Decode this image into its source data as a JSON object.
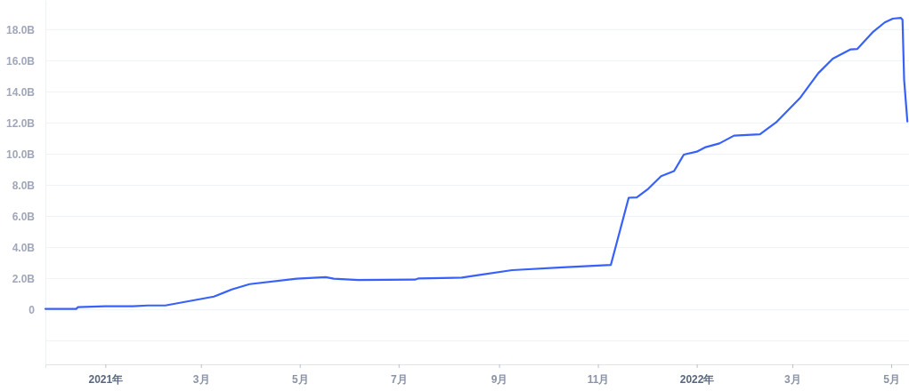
{
  "chart_data": {
    "type": "line",
    "x": [
      "2020-11-25",
      "2020-12-14",
      "2020-12-15",
      "2021-01-01",
      "2021-01-18",
      "2021-01-27",
      "2021-02-07",
      "2021-03-09",
      "2021-03-20",
      "2021-03-31",
      "2021-04-29",
      "2021-05-17",
      "2021-05-22",
      "2021-06-06",
      "2021-07-11",
      "2021-07-13",
      "2021-08-09",
      "2021-08-20",
      "2021-09-09",
      "2021-10-10",
      "2021-11-09",
      "2021-11-20",
      "2021-11-25",
      "2021-12-02",
      "2021-12-10",
      "2021-12-18",
      "2021-12-24",
      "2022-01-01",
      "2022-01-06",
      "2022-01-15",
      "2022-01-24",
      "2022-02-09",
      "2022-02-19",
      "2022-03-06",
      "2022-03-17",
      "2022-03-26",
      "2022-04-06",
      "2022-04-10",
      "2022-04-20",
      "2022-04-27",
      "2022-05-02",
      "2022-05-07",
      "2022-05-08",
      "2022-05-09",
      "2022-05-11"
    ],
    "series": [
      {
        "color": "#3861fb",
        "values": [
          0.06,
          0.06,
          0.17,
          0.23,
          0.23,
          0.28,
          0.28,
          0.85,
          1.31,
          1.65,
          2.0,
          2.1,
          2.0,
          1.92,
          1.94,
          2.01,
          2.07,
          2.24,
          2.55,
          2.73,
          2.89,
          7.2,
          7.22,
          7.77,
          8.59,
          8.91,
          9.97,
          10.16,
          10.43,
          10.69,
          11.19,
          11.28,
          12.04,
          13.64,
          15.2,
          16.13,
          16.73,
          16.75,
          17.87,
          18.46,
          18.7,
          18.75,
          18.63,
          14.76,
          12.1
        ]
      }
    ],
    "xlim": [
      "2020-11-25",
      "2022-05-12"
    ],
    "xticks": [
      {
        "value": "2021-01-01",
        "label": "2021年"
      },
      {
        "value": "2021-03-01",
        "label": "3月"
      },
      {
        "value": "2021-05-01",
        "label": "5月"
      },
      {
        "value": "2021-07-01",
        "label": "7月"
      },
      {
        "value": "2021-09-01",
        "label": "9月"
      },
      {
        "value": "2021-11-01",
        "label": "11月"
      },
      {
        "value": "2022-01-01",
        "label": "2022年"
      },
      {
        "value": "2022-03-01",
        "label": "3月"
      },
      {
        "value": "2022-05-01",
        "label": "5月"
      }
    ],
    "ylim": [
      -3.5,
      19.9
    ],
    "yticks": [
      {
        "value": -2,
        "label": null
      },
      {
        "value": 0,
        "label": "0"
      },
      {
        "value": 2,
        "label": "2.0B"
      },
      {
        "value": 4,
        "label": "4.0B"
      },
      {
        "value": 6,
        "label": "6.0B"
      },
      {
        "value": 8,
        "label": "8.0B"
      },
      {
        "value": 10,
        "label": "10.0B"
      },
      {
        "value": 12,
        "label": "12.0B"
      },
      {
        "value": 14,
        "label": "14.0B"
      },
      {
        "value": 16,
        "label": "16.0B"
      },
      {
        "value": 18,
        "label": "18.0B"
      }
    ],
    "grid": "y",
    "marker": "none",
    "line_style": "solid"
  }
}
